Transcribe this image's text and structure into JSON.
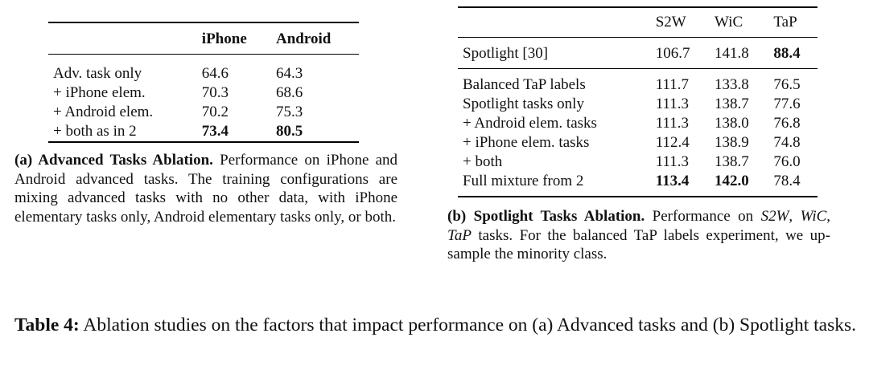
{
  "table_a": {
    "columns": [
      "iPhone",
      "Android"
    ],
    "rows": [
      [
        "Adv. task only",
        "64.6",
        "64.3"
      ],
      [
        "+ iPhone elem.",
        "70.3",
        "68.6"
      ],
      [
        "+ Android elem.",
        "70.2",
        "75.3"
      ],
      [
        "+ both as in 2",
        {
          "text": "73.4",
          "bold": true
        },
        {
          "text": "80.5",
          "bold": true
        }
      ]
    ],
    "caption": {
      "label": "(a) Advanced Tasks Ablation.",
      "text": "Performance on iPhone and Android advanced tasks. The training configurations are mixing advanced tasks with no other data, with iPhone elementary tasks only, Android elementary tasks only, or both."
    }
  },
  "table_b": {
    "columns": [
      "S2W",
      "WiC",
      "TaP"
    ],
    "groups": [
      [
        [
          "Spotlight [30]",
          "106.7",
          "141.8",
          {
            "text": "88.4",
            "bold": true
          }
        ]
      ],
      [
        [
          "Balanced TaP labels",
          "111.7",
          "133.8",
          "76.5"
        ],
        [
          "Spotlight tasks only",
          "111.3",
          "138.7",
          "77.6"
        ],
        [
          "+ Android elem. tasks",
          "111.3",
          "138.0",
          "76.8"
        ],
        [
          "+ iPhone elem. tasks",
          "112.4",
          "138.9",
          "74.8"
        ],
        [
          "+ both",
          "111.3",
          "138.7",
          "76.0"
        ],
        [
          "Full mixture from 2",
          {
            "text": "113.4",
            "bold": true
          },
          {
            "text": "142.0",
            "bold": true
          },
          "78.4"
        ]
      ]
    ],
    "caption": {
      "label": "(b) Spotlight Tasks Ablation.",
      "text": [
        "Performance on ",
        "S2W",
        ", ",
        "WiC",
        ", ",
        "TaP",
        " tasks. For the balanced TaP labels experiment, we up-sample the minority class."
      ]
    }
  },
  "caption": {
    "label": "Table 4:",
    "text": "Ablation studies on the factors that impact performance on (a) Advanced tasks and (b) Spotlight tasks."
  }
}
